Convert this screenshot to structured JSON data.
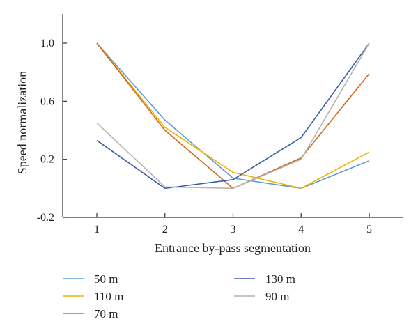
{
  "chart_data": {
    "type": "line",
    "xlabel": "Entrance by-pass segmentation",
    "ylabel": "Speed normalization",
    "x": [
      1,
      2,
      3,
      4,
      5
    ],
    "x_tick_labels": [
      "1",
      "2",
      "3",
      "4",
      "5"
    ],
    "xlim": [
      0.5,
      5.5
    ],
    "y_ticks": [
      -0.2,
      0.2,
      0.6,
      1.0
    ],
    "y_tick_labels": [
      "-0.2",
      "0.2",
      "0.6",
      "1.0"
    ],
    "ylim": [
      -0.2,
      1.2
    ],
    "grid": false,
    "legend_position": "bottom",
    "series": [
      {
        "name": "50 m",
        "color": "#5b9bd5",
        "values": [
          1.0,
          0.47,
          0.07,
          0.0,
          0.19
        ]
      },
      {
        "name": "110 m",
        "color": "#f0b400",
        "values": [
          1.0,
          0.42,
          0.11,
          0.0,
          0.25
        ]
      },
      {
        "name": "70 m",
        "color": "#d2691e",
        "values": [
          1.0,
          0.4,
          0.0,
          0.21,
          0.79
        ]
      },
      {
        "name": "130 m",
        "color": "#3a5ca8",
        "values": [
          0.33,
          0.0,
          0.06,
          0.35,
          1.0
        ]
      },
      {
        "name": "90 m",
        "color": "#b4b4b4",
        "values": [
          0.45,
          0.01,
          0.0,
          0.2,
          1.0
        ]
      }
    ]
  }
}
